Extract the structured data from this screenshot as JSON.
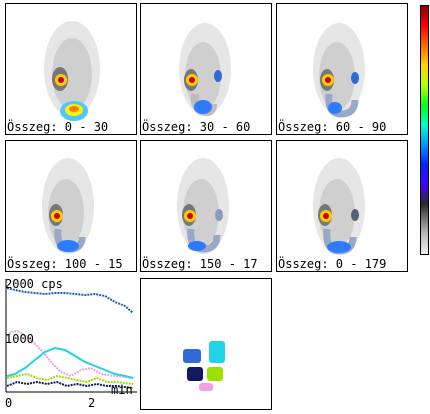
{
  "frames": [
    {
      "label": "Összeg: 0 - 30"
    },
    {
      "label": "Összeg: 30 - 60"
    },
    {
      "label": "Összeg: 60 - 90"
    },
    {
      "label": "Összeg: 100 - 15"
    },
    {
      "label": "Összeg: 150 - 17"
    },
    {
      "label": "Összeg: 0 - 179"
    }
  ],
  "curves": {
    "ymax_label": "2000 cps",
    "ymid_label": "1000",
    "x_tick_0": "0",
    "x_tick_2": "2",
    "x_unit": "min"
  },
  "colors": {
    "series_blue": "#1f5fb0",
    "series_cyan": "#22d3e6",
    "series_pink": "#f0a0e0",
    "series_lime": "#9be000",
    "series_navy": "#101860"
  }
}
